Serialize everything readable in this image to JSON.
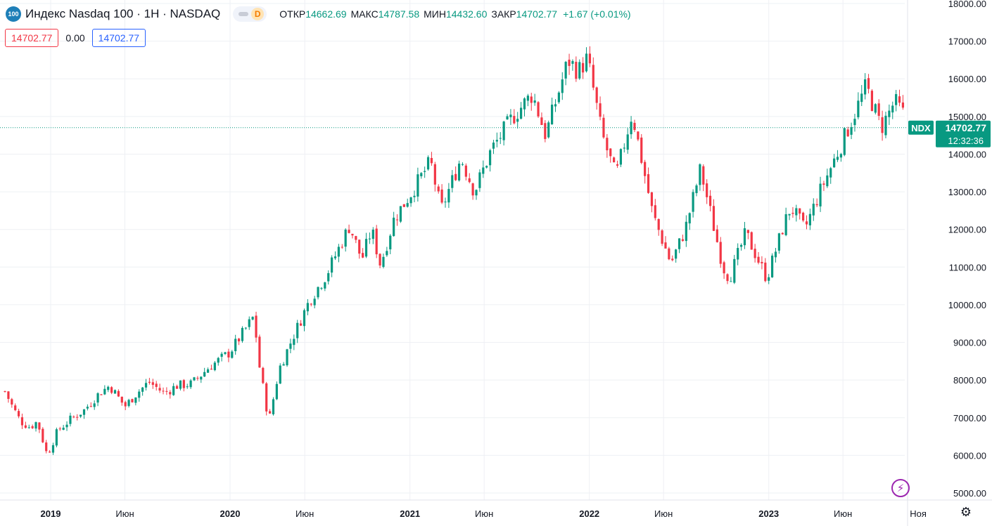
{
  "header": {
    "logo_text": "100",
    "title": "Индекс Nasdaq 100 · 1Н · NASDAQ",
    "badge": "D",
    "ohlc": {
      "open_label": "ОТКР",
      "open": "14662.69",
      "high_label": "МАКС",
      "high": "14787.58",
      "low_label": "МИН",
      "low": "14432.60",
      "close_label": "ЗАКР",
      "close": "14702.77",
      "change": "+1.67 (+0.01%)"
    }
  },
  "inputs": {
    "bid": "14702.77",
    "spread": "0.00",
    "ask": "14702.77"
  },
  "price_label": {
    "symbol": "NDX",
    "price": "14702.77",
    "countdown": "12:32:36",
    "value": 14702.77
  },
  "colors": {
    "up": "#089981",
    "down": "#f23645",
    "grid": "#eef0f4",
    "accent": "#2962ff"
  },
  "icons": {
    "flash": "lightning-icon",
    "settings": "gear-icon"
  },
  "chart_data": {
    "type": "candlestick",
    "ylim": [
      5000,
      18000
    ],
    "y_ticks": [
      18000,
      17000,
      16000,
      15000,
      14000,
      13000,
      12000,
      11000,
      10000,
      9000,
      8000,
      7000,
      6000,
      5000
    ],
    "y_tick_labels": [
      "18000.00",
      "17000.00",
      "16000.00",
      "15000.00",
      "14000.00",
      "13000.00",
      "12000.00",
      "11000.00",
      "10000.00",
      "9000.00",
      "8000.00",
      "7000.00",
      "6000.00",
      "5000.00"
    ],
    "x_ticks": [
      {
        "label": "2019",
        "date": "2019-01-01",
        "bold": true
      },
      {
        "label": "Июн",
        "date": "2019-06-01",
        "bold": false
      },
      {
        "label": "2020",
        "date": "2020-01-01",
        "bold": true
      },
      {
        "label": "Июн",
        "date": "2020-06-01",
        "bold": false
      },
      {
        "label": "2021",
        "date": "2021-01-01",
        "bold": true
      },
      {
        "label": "Июн",
        "date": "2021-06-01",
        "bold": false
      },
      {
        "label": "2022",
        "date": "2022-01-01",
        "bold": true
      },
      {
        "label": "Июн",
        "date": "2022-06-01",
        "bold": false
      },
      {
        "label": "2023",
        "date": "2023-01-01",
        "bold": true
      },
      {
        "label": "Июн",
        "date": "2023-06-01",
        "bold": false
      },
      {
        "label": "Ноя",
        "date": "2023-11-01",
        "bold": false
      }
    ],
    "close_anchors": [
      [
        "2018-09-30",
        7700
      ],
      [
        "2018-10-15",
        7300
      ],
      [
        "2018-11-01",
        6900
      ],
      [
        "2018-11-20",
        6750
      ],
      [
        "2018-12-05",
        6900
      ],
      [
        "2018-12-25",
        6000
      ],
      [
        "2019-01-15",
        6650
      ],
      [
        "2019-02-10",
        6950
      ],
      [
        "2019-03-10",
        7200
      ],
      [
        "2019-04-10",
        7650
      ],
      [
        "2019-05-01",
        7850
      ],
      [
        "2019-06-01",
        7300
      ],
      [
        "2019-06-25",
        7650
      ],
      [
        "2019-07-20",
        7950
      ],
      [
        "2019-08-20",
        7650
      ],
      [
        "2019-09-15",
        7850
      ],
      [
        "2019-10-15",
        7900
      ],
      [
        "2019-11-20",
        8350
      ],
      [
        "2019-12-31",
        8730
      ],
      [
        "2020-02-19",
        9700
      ],
      [
        "2020-02-28",
        8500
      ],
      [
        "2020-03-20",
        6900
      ],
      [
        "2020-04-10",
        8300
      ],
      [
        "2020-05-10",
        9200
      ],
      [
        "2020-06-10",
        10100
      ],
      [
        "2020-07-15",
        10800
      ],
      [
        "2020-08-31",
        12100
      ],
      [
        "2020-09-25",
        11200
      ],
      [
        "2020-10-15",
        12000
      ],
      [
        "2020-11-02",
        11050
      ],
      [
        "2020-11-30",
        12300
      ],
      [
        "2020-12-31",
        12900
      ],
      [
        "2021-02-12",
        13800
      ],
      [
        "2021-03-05",
        12500
      ],
      [
        "2021-04-15",
        13900
      ],
      [
        "2021-05-12",
        13000
      ],
      [
        "2021-06-15",
        14100
      ],
      [
        "2021-07-30",
        15000
      ],
      [
        "2021-09-07",
        15600
      ],
      [
        "2021-10-04",
        14500
      ],
      [
        "2021-11-19",
        16500
      ],
      [
        "2021-12-10",
        16200
      ],
      [
        "2021-12-28",
        16550
      ],
      [
        "2022-01-27",
        14500
      ],
      [
        "2022-02-24",
        13400
      ],
      [
        "2022-03-29",
        15100
      ],
      [
        "2022-05-10",
        12400
      ],
      [
        "2022-06-16",
        11100
      ],
      [
        "2022-07-15",
        12000
      ],
      [
        "2022-08-15",
        13600
      ],
      [
        "2022-09-30",
        11000
      ],
      [
        "2022-10-13",
        10700
      ],
      [
        "2022-11-15",
        11900
      ],
      [
        "2022-12-28",
        10700
      ],
      [
        "2023-01-31",
        12100
      ],
      [
        "2023-02-15",
        12600
      ],
      [
        "2023-03-15",
        12000
      ],
      [
        "2023-04-15",
        13000
      ],
      [
        "2023-05-30",
        14300
      ],
      [
        "2023-07-18",
        15800
      ],
      [
        "2023-08-18",
        14700
      ],
      [
        "2023-09-14",
        15400
      ],
      [
        "2023-10-05",
        15000
      ],
      [
        "2023-10-20",
        14700
      ]
    ],
    "last_price": 14702.77
  }
}
